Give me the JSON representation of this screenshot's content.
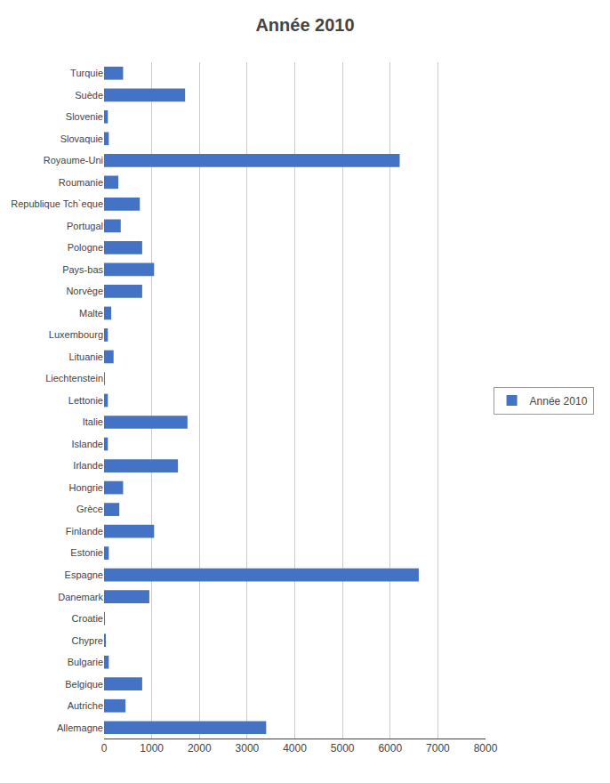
{
  "chart_data": {
    "type": "bar",
    "orientation": "horizontal",
    "title": "Année 2010",
    "categories": [
      "Turquie",
      "Suède",
      "Slovenie",
      "Slovaquie",
      "Royaume-Uni",
      "Roumanie",
      "Republique Tch`eque",
      "Portugal",
      "Pologne",
      "Pays-bas",
      "Norvège",
      "Malte",
      "Luxembourg",
      "Lituanie",
      "Liechtenstein",
      "Lettonie",
      "Italie",
      "Islande",
      "Irlande",
      "Hongrie",
      "Grèce",
      "Finlande",
      "Estonie",
      "Espagne",
      "Danemark",
      "Croatie",
      "Chypre",
      "Bulgarie",
      "Belgique",
      "Autriche",
      "Allemagne"
    ],
    "series": [
      {
        "name": "Année 2010",
        "color": "#4472C4",
        "values": [
          400,
          1700,
          80,
          100,
          6200,
          300,
          750,
          350,
          800,
          1050,
          800,
          150,
          80,
          200,
          10,
          80,
          1750,
          80,
          1550,
          400,
          320,
          1050,
          100,
          6600,
          950,
          10,
          30,
          100,
          800,
          450,
          3400
        ]
      }
    ],
    "xlim": [
      0,
      8000
    ],
    "xticks": [
      0,
      1000,
      2000,
      3000,
      4000,
      5000,
      6000,
      7000,
      8000
    ],
    "grid": true,
    "legend": "right"
  }
}
